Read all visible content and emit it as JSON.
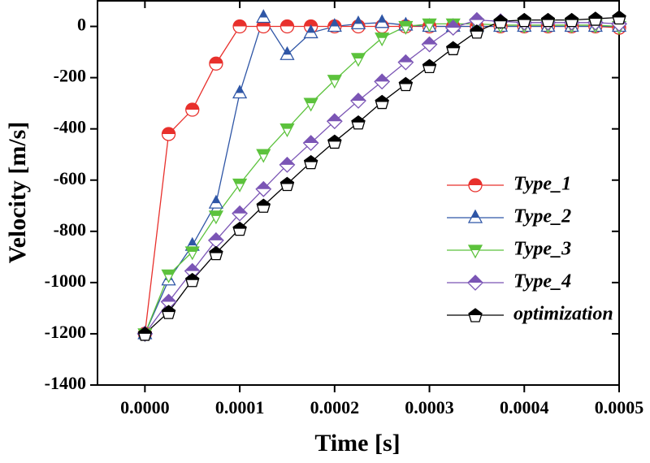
{
  "chart_data": {
    "type": "line",
    "x_label": "Time [s]",
    "y_label": "Velocity [m/s]",
    "x": [
      0,
      2.5e-05,
      5e-05,
      7.5e-05,
      0.0001,
      0.000125,
      0.00015,
      0.000175,
      0.0002,
      0.000225,
      0.00025,
      0.000275,
      0.0003,
      0.000325,
      0.00035,
      0.000375,
      0.0004,
      0.000425,
      0.00045,
      0.000475,
      0.0005
    ],
    "xlim": [
      -5e-05,
      0.0005
    ],
    "xticks": [
      {
        "value": 0,
        "label": "0.0000"
      },
      {
        "value": 0.0001,
        "label": "0.0001"
      },
      {
        "value": 0.0002,
        "label": "0.0002"
      },
      {
        "value": 0.0003,
        "label": "0.0003"
      },
      {
        "value": 0.0004,
        "label": "0.0004"
      },
      {
        "value": 0.0005,
        "label": "0.0005"
      }
    ],
    "ylim": [
      -1400,
      100
    ],
    "yticks": [
      -1400,
      -1200,
      -1000,
      -800,
      -600,
      -400,
      -200,
      0
    ],
    "legend": "lower right",
    "series": [
      {
        "name": "Type_1",
        "color": "#e8302c",
        "marker": "circle",
        "values": [
          -1200,
          -420,
          -325,
          -145,
          0,
          0,
          0,
          0,
          0,
          0,
          0,
          0,
          0,
          0,
          0,
          0,
          0,
          0,
          0,
          0,
          -5
        ]
      },
      {
        "name": "Type_2",
        "color": "#2f56a6",
        "marker": "triangle-up",
        "values": [
          -1200,
          -990,
          -855,
          -690,
          -260,
          35,
          -110,
          -25,
          0,
          10,
          15,
          5,
          0,
          0,
          0,
          0,
          0,
          0,
          0,
          0,
          0
        ]
      },
      {
        "name": "Type_3",
        "color": "#5cc23c",
        "marker": "triangle-down",
        "values": [
          -1200,
          -970,
          -880,
          -740,
          -615,
          -500,
          -400,
          -300,
          -210,
          -125,
          -45,
          0,
          10,
          10,
          10,
          5,
          5,
          5,
          5,
          5,
          0
        ]
      },
      {
        "name": "Type_4",
        "color": "#7b55b5",
        "marker": "diamond",
        "values": [
          -1200,
          -1075,
          -955,
          -835,
          -730,
          -635,
          -540,
          -455,
          -370,
          -290,
          -215,
          -140,
          -70,
          -5,
          25,
          20,
          15,
          15,
          15,
          15,
          10
        ]
      },
      {
        "name": "optimization",
        "color": "#000000",
        "marker": "pentagon",
        "values": [
          -1200,
          -1115,
          -990,
          -885,
          -790,
          -700,
          -615,
          -530,
          -450,
          -375,
          -295,
          -225,
          -155,
          -85,
          -20,
          20,
          25,
          25,
          25,
          30,
          35
        ]
      }
    ]
  }
}
